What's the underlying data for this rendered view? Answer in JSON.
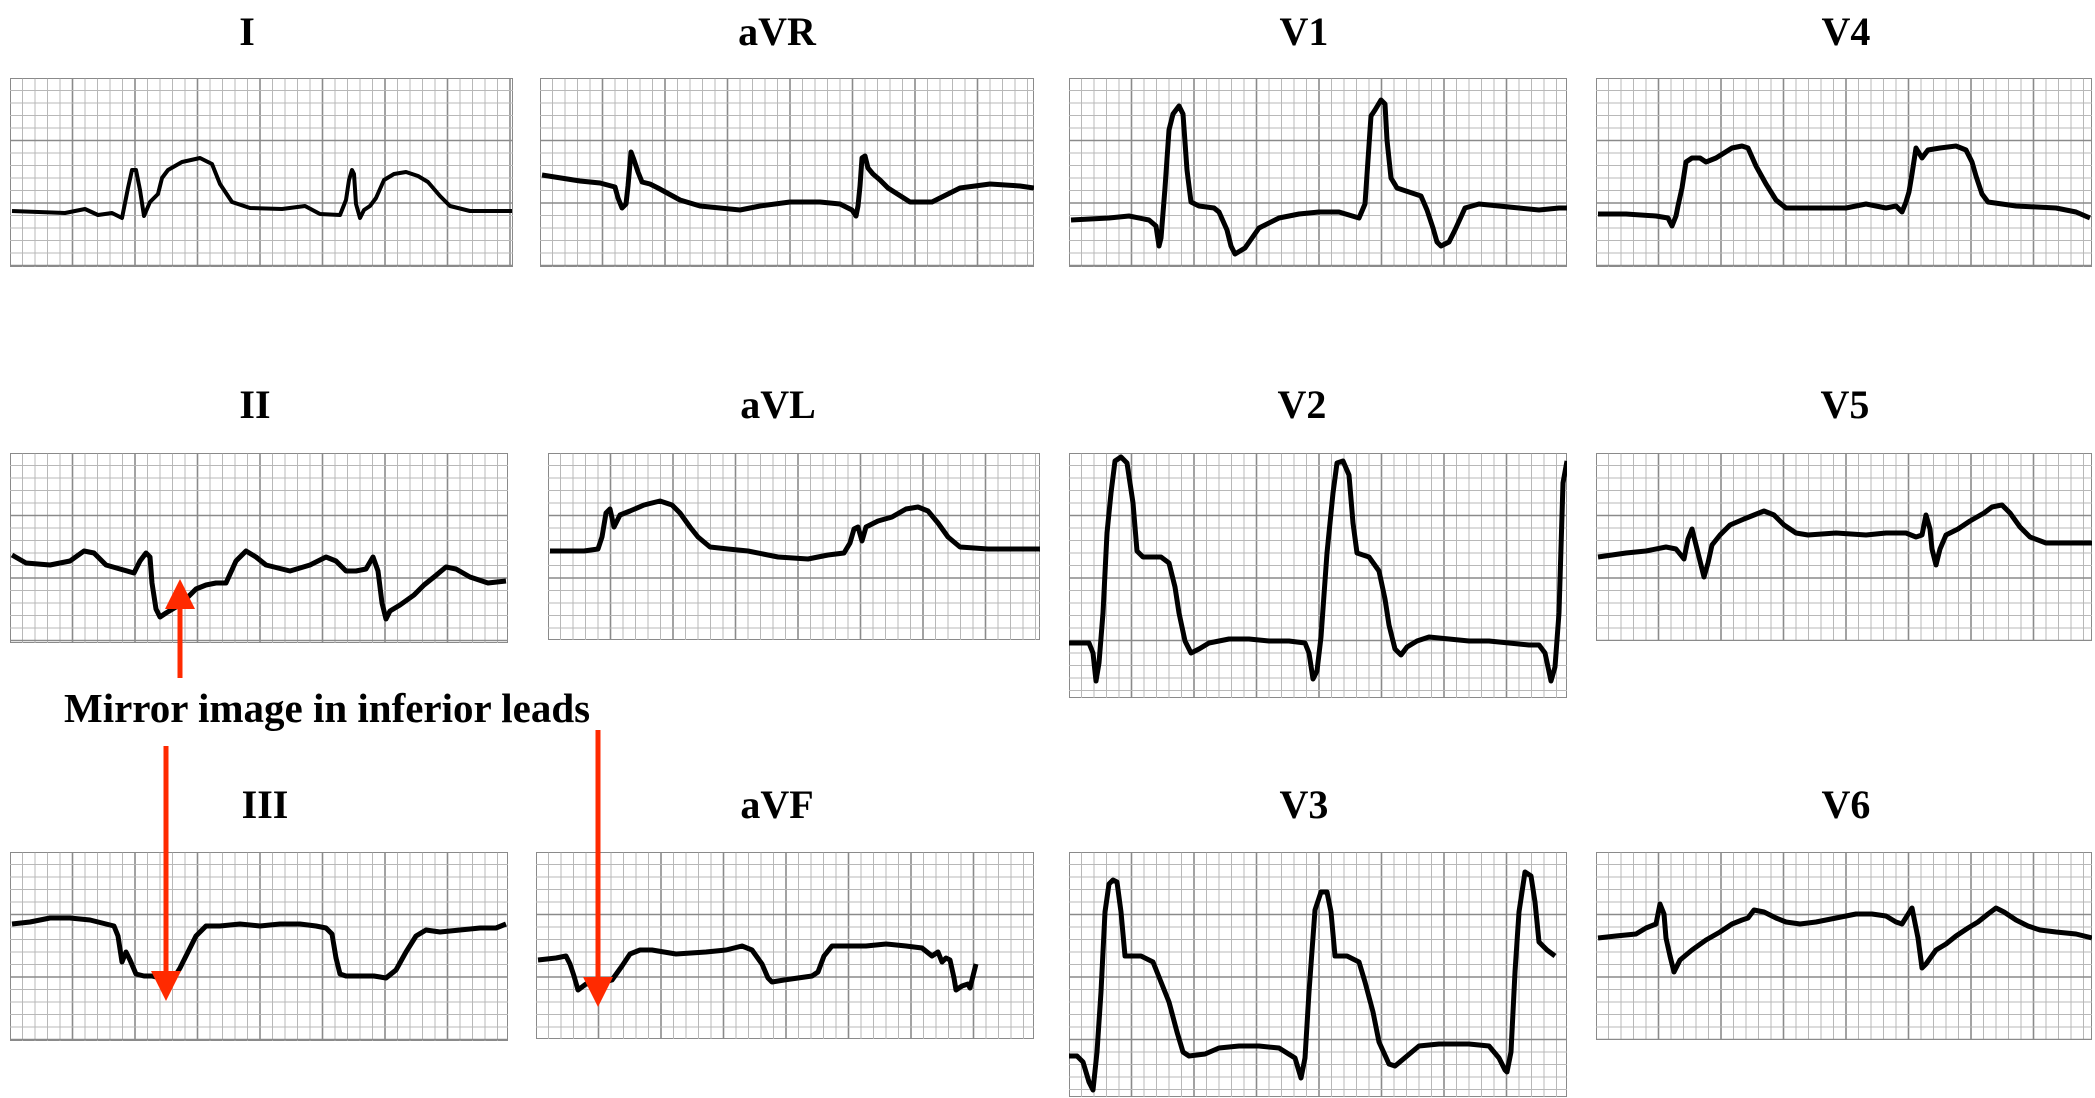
{
  "colors": {
    "background": "#ffffff",
    "grid_minor": "#b8b8b8",
    "grid_major": "#8a8a8a",
    "trace": "#000000",
    "annotation_arrow": "#ff2a00",
    "title_text": "#000000"
  },
  "leads": [
    {
      "id": "I",
      "label": "I"
    },
    {
      "id": "aVR",
      "label": "aVR"
    },
    {
      "id": "V1",
      "label": "V1"
    },
    {
      "id": "V4",
      "label": "V4"
    },
    {
      "id": "II",
      "label": "II"
    },
    {
      "id": "aVL",
      "label": "aVL"
    },
    {
      "id": "V2",
      "label": "V2"
    },
    {
      "id": "V5",
      "label": "V5"
    },
    {
      "id": "III",
      "label": "III"
    },
    {
      "id": "aVF",
      "label": "aVF"
    },
    {
      "id": "V3",
      "label": "V3"
    },
    {
      "id": "V6",
      "label": "V6"
    }
  ],
  "annotation": {
    "text": "Mirror image in inferior leads"
  }
}
